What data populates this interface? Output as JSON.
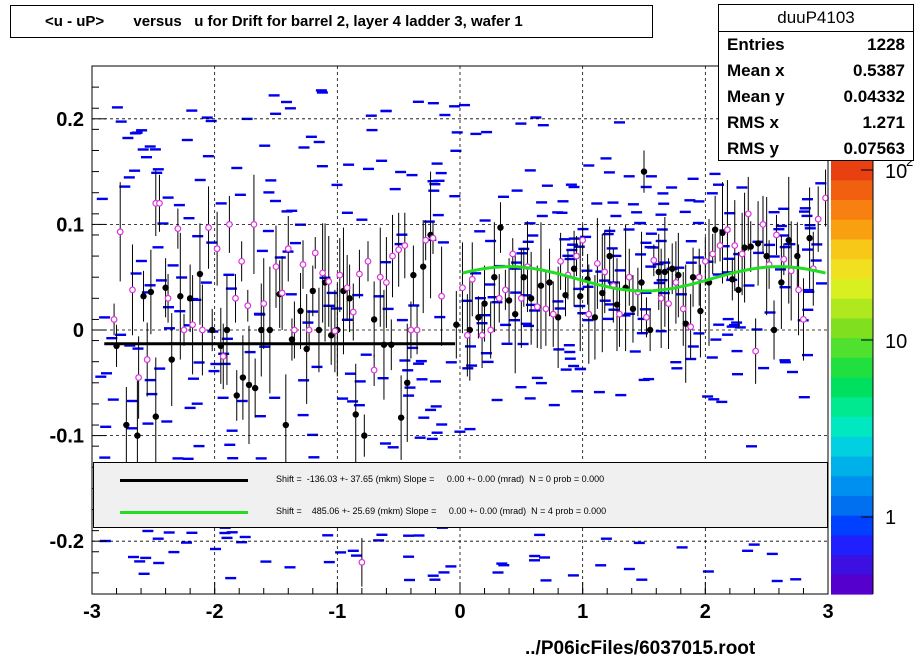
{
  "title": "<u - uP>       versus   u for Drift for barrel 2, layer 4 ladder 3, wafer 1",
  "stats": {
    "name": "duuP4103",
    "entries_label": "Entries",
    "entries": "1228",
    "meanx_label": "Mean x",
    "meanx": "0.5387",
    "meany_label": "Mean y",
    "meany": "0.04332",
    "rmsx_label": "RMS x",
    "rmsx": "1.271",
    "rmsy_label": "RMS y",
    "rmsy": "0.07563"
  },
  "legend": {
    "line1": "Shift =  -136.03 +- 37.65 (mkm) Slope =     0.00 +- 0.00 (mrad)  N = 0 prob = 0.000",
    "line2": "Shift =    485.06 +- 25.69 (mkm) Slope =     0.00 +- 0.00 (mrad)  N = 4 prob = 0.000",
    "line1_color": "#000000",
    "line2_color": "#22dd22"
  },
  "file_label": "../P06icFiles/6037015.root",
  "palette": {
    "labels": [
      "1",
      "10",
      "10",
      "2"
    ]
  },
  "chart_data": {
    "type": "scatter",
    "xlim": [
      -3,
      3
    ],
    "ylim": [
      -0.25,
      0.25
    ],
    "x_ticks": [
      "-3",
      "-2",
      "-1",
      "0",
      "1",
      "2",
      "3"
    ],
    "y_ticks": [
      "-0.2",
      "-0.1",
      "0",
      "0.1",
      "0.2"
    ],
    "grid": true,
    "colors": {
      "cells": "#0000ee",
      "black_points": "#000000",
      "pink_points": "#dd33dd",
      "fit": "#22dd22"
    },
    "black_points": [
      [
        -2.8,
        -0.015
      ],
      [
        -2.72,
        -0.09
      ],
      [
        -2.63,
        -0.1
      ],
      [
        -2.58,
        0.032
      ],
      [
        -2.52,
        0.036
      ],
      [
        -2.48,
        -0.082
      ],
      [
        -2.4,
        0.04
      ],
      [
        -2.35,
        -0.028
      ],
      [
        -2.28,
        0.032
      ],
      [
        -2.2,
        0.03
      ],
      [
        -2.12,
        0.053
      ],
      [
        -2.02,
        0.0
      ],
      [
        -1.95,
        -0.015
      ],
      [
        -1.9,
        0.0
      ],
      [
        -1.82,
        -0.062
      ],
      [
        -1.77,
        -0.045
      ],
      [
        -1.72,
        -0.052
      ],
      [
        -1.67,
        -0.055
      ],
      [
        -1.62,
        0.0
      ],
      [
        -1.55,
        0.0
      ],
      [
        -1.47,
        0.034
      ],
      [
        -1.42,
        -0.09
      ],
      [
        -1.37,
        -0.009
      ],
      [
        -1.3,
        0.018
      ],
      [
        -1.25,
        -0.018
      ],
      [
        -1.2,
        0.037
      ],
      [
        -1.15,
        0.0
      ],
      [
        -1.1,
        0.045
      ],
      [
        -1.05,
        -0.005
      ],
      [
        -1.0,
        0.0
      ],
      [
        -0.95,
        0.037
      ],
      [
        -0.9,
        0.03
      ],
      [
        -0.85,
        -0.08
      ],
      [
        -0.78,
        -0.1
      ],
      [
        -0.7,
        0.01
      ],
      [
        -0.62,
        -0.014
      ],
      [
        -0.56,
        -0.014
      ],
      [
        -0.48,
        -0.083
      ],
      [
        -0.43,
        -0.05
      ],
      [
        -0.38,
        0.052
      ],
      [
        -0.3,
        0.06
      ],
      [
        -0.24,
        0.09
      ],
      [
        -0.03,
        0.005
      ],
      [
        0.08,
        0.0
      ],
      [
        0.15,
        0.012
      ],
      [
        0.2,
        0.025
      ],
      [
        0.28,
        0.05
      ],
      [
        0.33,
        0.097
      ],
      [
        0.4,
        0.028
      ],
      [
        0.45,
        0.015
      ],
      [
        0.52,
        0.05
      ],
      [
        0.58,
        0.03
      ],
      [
        0.66,
        0.042
      ],
      [
        0.73,
        0.045
      ],
      [
        0.8,
        0.012
      ],
      [
        0.86,
        0.033
      ],
      [
        0.93,
        0.058
      ],
      [
        0.98,
        0.032
      ],
      [
        1.04,
        0.048
      ],
      [
        1.1,
        0.012
      ],
      [
        1.16,
        0.035
      ],
      [
        1.22,
        0.07
      ],
      [
        1.28,
        0.024
      ],
      [
        1.35,
        0.04
      ],
      [
        1.41,
        0.02
      ],
      [
        1.48,
        0.045
      ],
      [
        1.55,
        0.0
      ],
      [
        1.62,
        0.055
      ],
      [
        1.67,
        0.055
      ],
      [
        1.73,
        0.058
      ],
      [
        1.78,
        0.052
      ],
      [
        1.84,
        0.006
      ],
      [
        1.9,
        0.05
      ],
      [
        1.96,
        0.018
      ],
      [
        2.03,
        0.045
      ],
      [
        2.08,
        0.095
      ],
      [
        2.14,
        0.092
      ],
      [
        2.22,
        0.048
      ],
      [
        2.27,
        0.038
      ],
      [
        2.32,
        0.078
      ],
      [
        2.37,
        0.079
      ],
      [
        2.43,
        0.082
      ],
      [
        2.5,
        0.07
      ],
      [
        2.56,
        0.0
      ],
      [
        2.62,
        0.045
      ],
      [
        2.68,
        0.085
      ],
      [
        2.75,
        0.07
      ],
      [
        2.85,
        0.087
      ],
      [
        1.5,
        0.15
      ]
    ],
    "pink_points": [
      [
        -2.82,
        0.01
      ],
      [
        -2.77,
        0.093
      ],
      [
        -2.67,
        0.038
      ],
      [
        -2.62,
        -0.045
      ],
      [
        -2.55,
        -0.028
      ],
      [
        -2.48,
        0.12
      ],
      [
        -2.45,
        0.12
      ],
      [
        -2.38,
        0.03
      ],
      [
        -2.3,
        0.096
      ],
      [
        -2.25,
        0.0
      ],
      [
        -2.18,
        0.005
      ],
      [
        -2.1,
        0.0
      ],
      [
        -2.05,
        0.097
      ],
      [
        -1.98,
        0.077
      ],
      [
        -1.93,
        -0.025
      ],
      [
        -1.88,
        0.1
      ],
      [
        -1.83,
        0.03
      ],
      [
        -1.78,
        0.065
      ],
      [
        -1.73,
        0.023
      ],
      [
        -1.68,
        0.1
      ],
      [
        -1.6,
        0.025
      ],
      [
        -1.5,
        0.06
      ],
      [
        -1.45,
        0.035
      ],
      [
        -1.4,
        0.077
      ],
      [
        -1.35,
        0.0
      ],
      [
        -1.28,
        0.062
      ],
      [
        -1.23,
        0.0
      ],
      [
        -1.18,
        0.073
      ],
      [
        -1.12,
        0.054
      ],
      [
        -1.07,
        0.046
      ],
      [
        -1.02,
        -0.001
      ],
      [
        -0.98,
        0.052
      ],
      [
        -0.92,
        0.04
      ],
      [
        -0.87,
        0.017
      ],
      [
        -0.82,
        0.053
      ],
      [
        -0.75,
        0.065
      ],
      [
        -0.7,
        -0.038
      ],
      [
        -0.65,
        0.05
      ],
      [
        -0.6,
        0.045
      ],
      [
        -0.55,
        0.07
      ],
      [
        -0.5,
        0.076
      ],
      [
        -0.45,
        0.08
      ],
      [
        -0.4,
        0.0
      ],
      [
        -0.35,
        0.0
      ],
      [
        -0.28,
        0.085
      ],
      [
        -0.22,
        0.087
      ],
      [
        -0.15,
        0.032
      ],
      [
        0.02,
        0.04
      ],
      [
        0.06,
        -0.005
      ],
      [
        0.1,
        0.048
      ],
      [
        0.18,
        -0.005
      ],
      [
        0.25,
        0.0
      ],
      [
        0.32,
        0.03
      ],
      [
        0.37,
        0.038
      ],
      [
        0.43,
        0.072
      ],
      [
        0.5,
        0.03
      ],
      [
        0.55,
        0.06
      ],
      [
        0.63,
        0.022
      ],
      [
        0.7,
        0.02
      ],
      [
        0.76,
        0.015
      ],
      [
        0.82,
        0.065
      ],
      [
        0.88,
        0.052
      ],
      [
        0.95,
        0.07
      ],
      [
        1.0,
        0.085
      ],
      [
        1.05,
        0.015
      ],
      [
        1.12,
        0.063
      ],
      [
        1.18,
        0.055
      ],
      [
        1.25,
        0.042
      ],
      [
        1.3,
        0.015
      ],
      [
        1.38,
        0.05
      ],
      [
        1.45,
        0.036
      ],
      [
        1.52,
        0.012
      ],
      [
        1.58,
        0.066
      ],
      [
        1.64,
        0.03
      ],
      [
        1.7,
        0.025
      ],
      [
        1.76,
        0.045
      ],
      [
        1.82,
        0.02
      ],
      [
        1.88,
        0.003
      ],
      [
        1.95,
        0.05
      ],
      [
        2.0,
        0.065
      ],
      [
        2.06,
        0.072
      ],
      [
        2.12,
        0.08
      ],
      [
        2.18,
        0.095
      ],
      [
        2.24,
        0.08
      ],
      [
        2.3,
        0.072
      ],
      [
        2.35,
        0.11
      ],
      [
        2.41,
        -0.02
      ],
      [
        2.47,
        0.1
      ],
      [
        2.52,
        0.062
      ],
      [
        2.58,
        0.09
      ],
      [
        2.64,
        0.067
      ],
      [
        2.7,
        0.056
      ],
      [
        2.76,
        0.038
      ],
      [
        2.8,
        0.01
      ],
      [
        2.88,
        0.058
      ],
      [
        2.92,
        0.105
      ],
      [
        2.98,
        0.125
      ],
      [
        -0.8,
        -0.22
      ]
    ],
    "blue_cells_seed": 1228,
    "line_black": {
      "x": [
        -2.9,
        -0.04
      ],
      "y": -0.013,
      "name": ""
    },
    "fit_green": {
      "x_range": [
        0.02,
        2.98
      ],
      "a": 0.0485,
      "b": 0.0115,
      "period": 2.2,
      "phase_x": 0.4,
      "name": ""
    }
  }
}
